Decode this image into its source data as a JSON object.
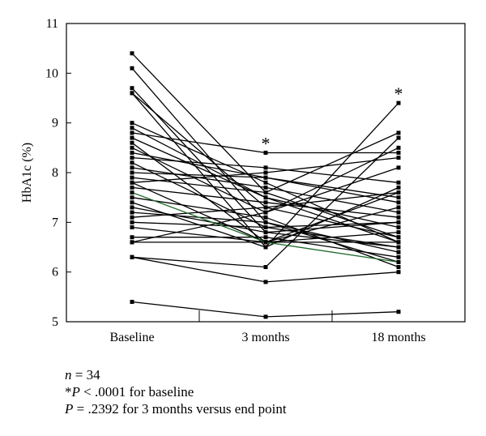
{
  "chart_data": {
    "type": "line",
    "ylabel": "HbA1c (%)",
    "xlabel": "",
    "categories": [
      "Baseline",
      "3 months",
      "18 months"
    ],
    "ylim": [
      5,
      11
    ],
    "yticks": [
      5,
      6,
      7,
      8,
      9,
      10,
      11
    ],
    "grid": false,
    "annotations": [
      {
        "category": "3 months",
        "y": 8.4,
        "text": "*"
      },
      {
        "category": "18 months",
        "y": 9.4,
        "text": "*"
      }
    ],
    "highlight_color": "#1f6b2a",
    "series": [
      {
        "values": [
          10.4,
          7.6,
          6.7
        ]
      },
      {
        "values": [
          10.1,
          7.0,
          6.2
        ]
      },
      {
        "values": [
          9.7,
          6.8,
          6.5
        ]
      },
      {
        "values": [
          9.6,
          6.5,
          9.4
        ]
      },
      {
        "values": [
          9.6,
          7.3,
          6.7
        ]
      },
      {
        "values": [
          9.0,
          7.8,
          6.6
        ]
      },
      {
        "values": [
          8.8,
          8.4,
          8.4
        ]
      },
      {
        "values": [
          8.7,
          7.5,
          6.9
        ]
      },
      {
        "values": [
          8.6,
          6.6,
          7.6
        ]
      },
      {
        "values": [
          8.5,
          7.2,
          8.5
        ]
      },
      {
        "values": [
          8.3,
          8.1,
          7.8
        ]
      },
      {
        "values": [
          8.2,
          6.9,
          7.0
        ]
      },
      {
        "values": [
          8.0,
          7.9,
          7.4
        ]
      },
      {
        "values": [
          7.9,
          7.6,
          8.8
        ]
      },
      {
        "values": [
          7.8,
          6.6,
          6.6
        ]
      },
      {
        "values": [
          7.7,
          7.4,
          7.1
        ]
      },
      {
        "values": [
          7.6,
          6.6,
          6.2
        ],
        "highlight": true
      },
      {
        "values": [
          7.5,
          7.1,
          6.1
        ]
      },
      {
        "values": [
          7.3,
          6.8,
          7.0
        ]
      },
      {
        "values": [
          7.2,
          7.0,
          6.4
        ]
      },
      {
        "values": [
          7.0,
          6.9,
          6.5
        ]
      },
      {
        "values": [
          6.9,
          6.6,
          7.3
        ]
      },
      {
        "values": [
          6.6,
          6.6,
          6.8
        ]
      },
      {
        "values": [
          6.6,
          7.2,
          8.1
        ]
      },
      {
        "values": [
          7.4,
          6.5,
          7.7
        ]
      },
      {
        "values": [
          8.1,
          7.7,
          7.2
        ]
      },
      {
        "values": [
          8.4,
          7.9,
          7.5
        ]
      },
      {
        "values": [
          6.3,
          6.1,
          8.7
        ]
      },
      {
        "values": [
          6.3,
          5.8,
          6.0
        ]
      },
      {
        "values": [
          5.4,
          5.1,
          5.2
        ]
      },
      {
        "values": [
          7.1,
          7.3,
          7.6
        ]
      },
      {
        "values": [
          7.8,
          8.0,
          8.3
        ]
      },
      {
        "values": [
          8.9,
          7.5,
          6.6
        ]
      },
      {
        "values": [
          6.7,
          6.7,
          6.3
        ]
      }
    ]
  },
  "notes": {
    "n_label": "n",
    "n_text": " = 34",
    "star": "*",
    "p1_label": "P",
    "p1_text": " < .0001 for baseline",
    "p2_label": "P",
    "p2_text": " = .2392 for 3 months versus end point"
  }
}
